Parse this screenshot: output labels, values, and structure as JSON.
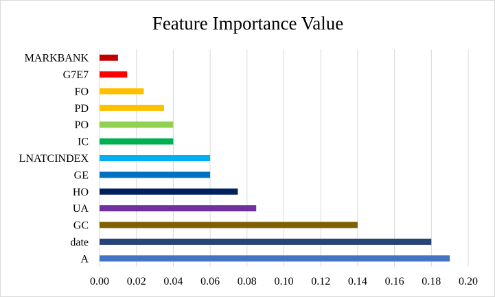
{
  "chart_data": {
    "type": "bar",
    "orientation": "horizontal",
    "title": "Feature Importance Value",
    "xlabel": "",
    "ylabel": "",
    "categories": [
      "A",
      "date",
      "GC",
      "UA",
      "HO",
      "GE",
      "LNATCINDEX",
      "IC",
      "PO",
      "PD",
      "FO",
      "G7E7",
      "MARKBANK"
    ],
    "values": [
      0.19,
      0.18,
      0.14,
      0.085,
      0.075,
      0.06,
      0.06,
      0.04,
      0.04,
      0.035,
      0.024,
      0.015,
      0.01
    ],
    "colors": [
      "#4472c4",
      "#264478",
      "#7f6000",
      "#7030a0",
      "#002060",
      "#0070c0",
      "#00b0f0",
      "#00b050",
      "#92d050",
      "#ffc000",
      "#ffc000",
      "#ff0000",
      "#c00000"
    ],
    "xlim": [
      0,
      0.2
    ],
    "xticks": [
      "0.00",
      "0.02",
      "0.04",
      "0.06",
      "0.08",
      "0.10",
      "0.12",
      "0.14",
      "0.16",
      "0.18",
      "0.20"
    ],
    "grid": true,
    "legend": "none"
  }
}
